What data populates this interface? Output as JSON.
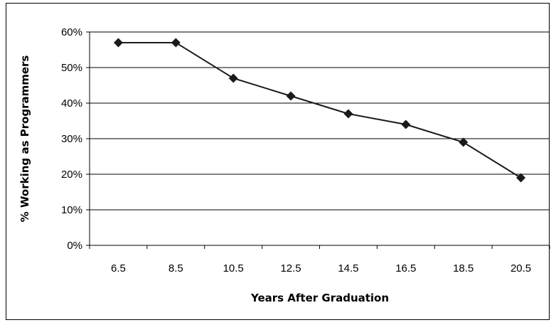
{
  "chart_data": {
    "type": "line",
    "title": "",
    "xlabel": "Years After Graduation",
    "ylabel": "% Working as Programmers",
    "categories": [
      "6.5",
      "8.5",
      "10.5",
      "12.5",
      "14.5",
      "16.5",
      "18.5",
      "20.5"
    ],
    "y_tick_labels": [
      "0%",
      "10%",
      "20%",
      "30%",
      "40%",
      "50%",
      "60%"
    ],
    "series": [
      {
        "values": [
          57,
          57,
          47,
          42,
          37,
          34,
          29,
          19
        ]
      }
    ],
    "ylim": [
      0,
      60
    ],
    "grid": true,
    "legend": "none",
    "line_color": "#1a1a1a",
    "marker": "diamond"
  }
}
